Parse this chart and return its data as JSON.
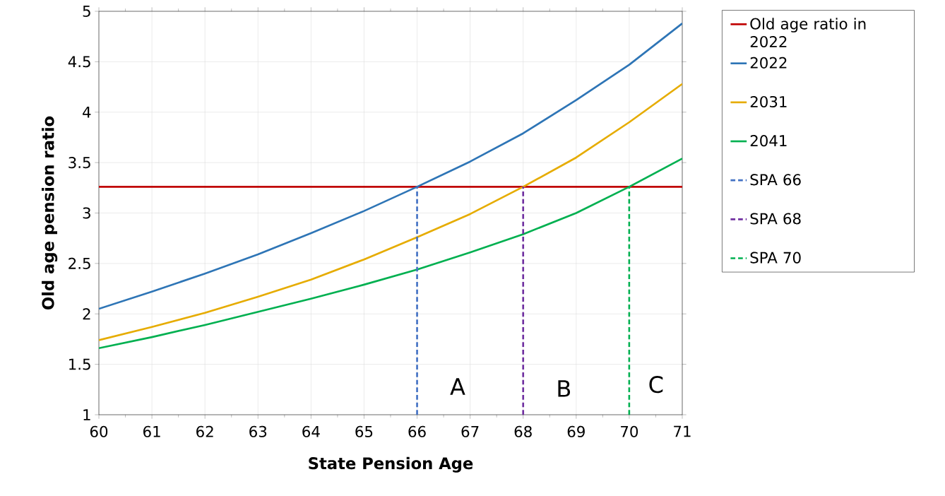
{
  "chart_data": {
    "type": "line",
    "xlabel": "State Pension Age",
    "ylabel": "Old age pension ratio",
    "x": [
      60,
      61,
      62,
      63,
      64,
      65,
      66,
      67,
      68,
      69,
      70,
      71
    ],
    "series": [
      {
        "name": "Old age ratio in 2022",
        "color": "#c00000",
        "values": [
          3.26,
          3.26,
          3.26,
          3.26,
          3.26,
          3.26,
          3.26,
          3.26,
          3.26,
          3.26,
          3.26,
          3.26
        ]
      },
      {
        "name": "2022",
        "color": "#2e75b6",
        "values": [
          2.05,
          2.22,
          2.4,
          2.59,
          2.8,
          3.02,
          3.26,
          3.51,
          3.79,
          4.12,
          4.47,
          4.88
        ]
      },
      {
        "name": "2031",
        "color": "#e6ac00",
        "values": [
          1.74,
          1.87,
          2.01,
          2.17,
          2.34,
          2.54,
          2.76,
          2.99,
          3.26,
          3.55,
          3.9,
          4.28
        ]
      },
      {
        "name": "2041",
        "color": "#00b050",
        "values": [
          1.66,
          1.77,
          1.89,
          2.02,
          2.15,
          2.29,
          2.44,
          2.61,
          2.79,
          3.0,
          3.26,
          3.54
        ]
      },
      {
        "name": "SPA 66",
        "color": "#4472c4",
        "line_style": "dashed",
        "x": [
          66,
          66
        ],
        "values": [
          1,
          3.26
        ]
      },
      {
        "name": "SPA 68",
        "color": "#7030a0",
        "line_style": "dashed",
        "x": [
          68,
          68
        ],
        "values": [
          1,
          3.26
        ]
      },
      {
        "name": "SPA 70",
        "color": "#00b050",
        "line_style": "dashed",
        "x": [
          70,
          70
        ],
        "values": [
          1,
          3.26
        ]
      }
    ],
    "annotations": [
      "A",
      "B",
      "C"
    ],
    "xlim": [
      60,
      71
    ],
    "ylim": [
      1,
      5
    ],
    "xticks": [
      60,
      61,
      62,
      63,
      64,
      65,
      66,
      67,
      68,
      69,
      70,
      71
    ],
    "yticks": [
      1,
      1.5,
      2,
      2.5,
      3,
      3.5,
      4,
      4.5,
      5
    ],
    "grid": true,
    "legend": "right",
    "line_style": "solid"
  }
}
